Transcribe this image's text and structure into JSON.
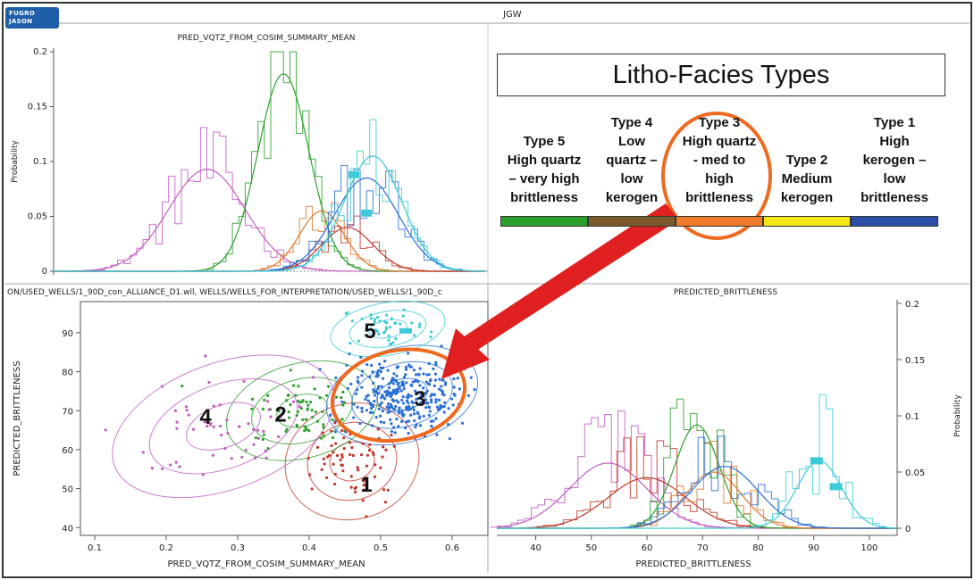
{
  "header": {
    "logo_text": "FUGRO JASON",
    "window_title": "JGW"
  },
  "legend": {
    "title": "Litho-Facies Types",
    "types": [
      {
        "lines": [
          "Type 5",
          "High quartz",
          "– very high",
          "brittleness"
        ],
        "color": "#2ca02c"
      },
      {
        "lines": [
          "Type 4",
          "Low",
          "quartz –",
          "low",
          "kerogen"
        ],
        "color": "#7a5a2a"
      },
      {
        "lines": [
          "Type 3",
          "High quartz",
          "- med to",
          "high",
          "brittleness"
        ],
        "color": "#f07b2a"
      },
      {
        "lines": [
          "Type 2",
          "Medium",
          "kerogen"
        ],
        "color": "#f5e61a"
      },
      {
        "lines": [
          "Type 1",
          "High",
          "kerogen –",
          "low",
          "brittleness"
        ],
        "color": "#2b4fa8"
      }
    ]
  },
  "chart_data": [
    {
      "type": "area",
      "title": "PRED_VQTZ_FROM_COSIM_SUMMARY_MEAN",
      "xlabel": "",
      "ylabel": "Probability",
      "ylim": [
        0,
        0.2
      ],
      "yticks": [
        "0",
        "0.05",
        "0.1",
        "0.15",
        "0.2"
      ],
      "series": [
        {
          "color": "#c35bc3",
          "curve": {
            "mean": 0.28,
            "peak": 0.093
          }
        },
        {
          "color": "#2ca02c",
          "curve": {
            "mean": 0.4,
            "peak": 0.18
          }
        },
        {
          "color": "#e07a30",
          "curve": {
            "mean": 0.46,
            "peak": 0.055
          }
        },
        {
          "color": "#c0392b",
          "curve": {
            "mean": 0.5,
            "peak": 0.04
          }
        },
        {
          "color": "#2a6fd6",
          "curve": {
            "mean": 0.53,
            "peak": 0.085
          }
        },
        {
          "color": "#3ccbd6",
          "curve": {
            "mean": 0.54,
            "peak": 0.105
          }
        }
      ],
      "mean_markers": [
        {
          "x": 0.51,
          "y": 0.088
        },
        {
          "x": 0.53,
          "y": 0.053
        }
      ]
    },
    {
      "type": "scatter",
      "title": "ON/USED_WELLS/1_90D_con_ALLIANCE_D1.wll, WELLS/WELLS_FOR_INTERPRETATION/USED_WELLS/1_90D_c",
      "xlabel": "PRED_VQTZ_FROM_COSIM_SUMMARY_MEAN",
      "ylabel": "PREDICTED_BRITTLENESS",
      "xlim": [
        0.08,
        0.65
      ],
      "ylim": [
        38,
        98
      ],
      "xticks": [
        "0.1",
        "0.2",
        "0.3",
        "0.4",
        "0.5",
        "0.6"
      ],
      "yticks": [
        "40",
        "50",
        "60",
        "70",
        "80",
        "90"
      ],
      "clusters": [
        {
          "label": "1",
          "color": "#c0392b",
          "center": [
            0.46,
            57
          ],
          "spread": [
            0.035,
            5.5
          ],
          "count": 70
        },
        {
          "label": "2",
          "color": "#2ca02c",
          "center": [
            0.39,
            70
          ],
          "spread": [
            0.04,
            4.5
          ],
          "count": 70
        },
        {
          "label": "3",
          "color": "#2a6fd6",
          "center": [
            0.53,
            74
          ],
          "spread": [
            0.04,
            4.5
          ],
          "count": 320
        },
        {
          "label": "4",
          "color": "#c35bc3",
          "center": [
            0.28,
            66
          ],
          "spread": [
            0.06,
            6.0
          ],
          "count": 55
        },
        {
          "label": "5",
          "color": "#3ccbd6",
          "center": [
            0.51,
            91
          ],
          "spread": [
            0.03,
            2.5
          ],
          "count": 45
        }
      ],
      "cluster_label_positions": [
        {
          "label": "1",
          "x": 0.48,
          "y": 51
        },
        {
          "label": "2",
          "x": 0.36,
          "y": 69
        },
        {
          "label": "3",
          "x": 0.555,
          "y": 73
        },
        {
          "label": "4",
          "x": 0.255,
          "y": 68.5
        },
        {
          "label": "5",
          "x": 0.485,
          "y": 90.5
        }
      ]
    },
    {
      "type": "area",
      "title": "PREDICTED_BRITTLENESS",
      "xlabel": "PREDICTED_BRITTLENESS",
      "ylabel": "Probability",
      "xlim": [
        33,
        105
      ],
      "ylim": [
        0,
        0.2
      ],
      "xticks": [
        "40",
        "50",
        "60",
        "70",
        "80",
        "90",
        "100"
      ],
      "yticks": [
        "0",
        "0.05",
        "0.1",
        "0.15",
        "0.2"
      ],
      "series": [
        {
          "color": "#c35bc3",
          "curve": {
            "mean": 53,
            "peak": 0.058
          }
        },
        {
          "color": "#c0392b",
          "curve": {
            "mean": 60,
            "peak": 0.045
          }
        },
        {
          "color": "#2ca02c",
          "curve": {
            "mean": 69,
            "peak": 0.092
          }
        },
        {
          "color": "#e07a30",
          "curve": {
            "mean": 72,
            "peak": 0.05
          }
        },
        {
          "color": "#2a6fd6",
          "curve": {
            "mean": 74,
            "peak": 0.055
          }
        },
        {
          "color": "#3ccbd6",
          "curve": {
            "mean": 91,
            "peak": 0.06
          }
        }
      ],
      "mean_markers": [
        {
          "x": 90.5,
          "y": 0.06
        },
        {
          "x": 94,
          "y": 0.037
        }
      ]
    }
  ]
}
